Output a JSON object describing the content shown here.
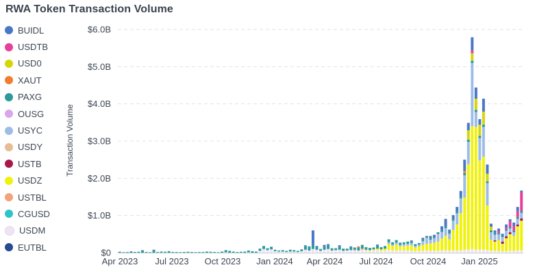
{
  "title": "RWA Token Transaction Volume",
  "chart_data": {
    "type": "bar",
    "stacked": true,
    "title": "RWA Token Transaction Volume",
    "xlabel": "",
    "ylabel": "Transaction Volume",
    "ylim": [
      0,
      6.0
    ],
    "y_unit": "billions USD",
    "grid": "horizontal dashed",
    "legend_placement": "left",
    "y_ticks": [
      "$0",
      "$1.0B",
      "$2.0B",
      "$3.0B",
      "$4.0B",
      "$5.0B",
      "$6.0B"
    ],
    "x_ticks": [
      "Apr 2023",
      "Jul 2023",
      "Oct 2023",
      "Jan 2024",
      "Apr 2024",
      "Jul 2024",
      "Oct 2024",
      "Jan 2025"
    ],
    "series": [
      {
        "name": "BUIDL",
        "color": "#4a78c6"
      },
      {
        "name": "USDTB",
        "color": "#e8409a"
      },
      {
        "name": "USD0",
        "color": "#d4d60a"
      },
      {
        "name": "XAUT",
        "color": "#f07e2e"
      },
      {
        "name": "PAXG",
        "color": "#2c9a9a"
      },
      {
        "name": "OUSG",
        "color": "#d9a5ec"
      },
      {
        "name": "USYC",
        "color": "#9ebde6"
      },
      {
        "name": "USDY",
        "color": "#e8bc95"
      },
      {
        "name": "USTB",
        "color": "#a8174a"
      },
      {
        "name": "USDZ",
        "color": "#f0f20c"
      },
      {
        "name": "USTBL",
        "color": "#f3a27a"
      },
      {
        "name": "CGUSD",
        "color": "#2fc4c8"
      },
      {
        "name": "USDM",
        "color": "#efe4f4"
      },
      {
        "name": "EUTBL",
        "color": "#284a93"
      }
    ],
    "bars": [
      {
        "x": "2023-W14",
        "values": {
          "PAXG": 0.02,
          "BUIDL": 0.005
        }
      },
      {
        "x": "2023-W15",
        "values": {
          "PAXG": 0.015
        }
      },
      {
        "x": "2023-W16",
        "values": {
          "PAXG": 0.018
        }
      },
      {
        "x": "2023-W17",
        "values": {
          "PAXG": 0.03,
          "BUIDL": 0.005
        }
      },
      {
        "x": "2023-W18",
        "values": {
          "PAXG": 0.02
        }
      },
      {
        "x": "2023-W19",
        "values": {
          "PAXG": 0.025
        }
      },
      {
        "x": "2023-W20",
        "values": {
          "PAXG": 0.06,
          "BUIDL": 0.008
        }
      },
      {
        "x": "2023-W21",
        "values": {
          "PAXG": 0.02
        }
      },
      {
        "x": "2023-W22",
        "values": {
          "PAXG": 0.015
        }
      },
      {
        "x": "2023-W23",
        "values": {
          "PAXG": 0.07,
          "BUIDL": 0.01
        }
      },
      {
        "x": "2023-W24",
        "values": {
          "PAXG": 0.02
        }
      },
      {
        "x": "2023-W25",
        "values": {
          "PAXG": 0.03
        }
      },
      {
        "x": "2023-W26",
        "values": {
          "PAXG": 0.025
        }
      },
      {
        "x": "2023-W27",
        "values": {
          "PAXG": 0.04
        }
      },
      {
        "x": "2023-W28",
        "values": {
          "PAXG": 0.02
        }
      },
      {
        "x": "2023-W29",
        "values": {
          "PAXG": 0.018
        }
      },
      {
        "x": "2023-W30",
        "values": {
          "PAXG": 0.015
        }
      },
      {
        "x": "2023-W31",
        "values": {
          "PAXG": 0.02
        }
      },
      {
        "x": "2023-W32",
        "values": {
          "PAXG": 0.025
        }
      },
      {
        "x": "2023-W33",
        "values": {
          "PAXG": 0.02
        }
      },
      {
        "x": "2023-W34",
        "values": {
          "PAXG": 0.015
        }
      },
      {
        "x": "2023-W35",
        "values": {
          "PAXG": 0.018
        }
      },
      {
        "x": "2023-W36",
        "values": {
          "PAXG": 0.02
        }
      },
      {
        "x": "2023-W37",
        "values": {
          "PAXG": 0.03
        }
      },
      {
        "x": "2023-W38",
        "values": {
          "PAXG": 0.025
        }
      },
      {
        "x": "2023-W39",
        "values": {
          "PAXG": 0.02
        }
      },
      {
        "x": "2023-W40",
        "values": {
          "PAXG": 0.015
        }
      },
      {
        "x": "2023-W41",
        "values": {
          "PAXG": 0.03
        }
      },
      {
        "x": "2023-W42",
        "values": {
          "PAXG": 0.06,
          "USDM": 0.01
        }
      },
      {
        "x": "2023-W43",
        "values": {
          "PAXG": 0.05
        }
      },
      {
        "x": "2023-W44",
        "values": {
          "PAXG": 0.03
        }
      },
      {
        "x": "2023-W45",
        "values": {
          "PAXG": 0.02
        }
      },
      {
        "x": "2023-W46",
        "values": {
          "PAXG": 0.025
        }
      },
      {
        "x": "2023-W47",
        "values": {
          "PAXG": 0.03
        }
      },
      {
        "x": "2023-W48",
        "values": {
          "PAXG": 0.05,
          "USDM": 0.01
        }
      },
      {
        "x": "2023-W49",
        "values": {
          "PAXG": 0.04
        }
      },
      {
        "x": "2023-W50",
        "values": {
          "PAXG": 0.03
        }
      },
      {
        "x": "2023-W51",
        "values": {
          "PAXG": 0.06,
          "USDM": 0.05
        }
      },
      {
        "x": "2023-W52",
        "values": {
          "PAXG": 0.08,
          "USDM": 0.1
        }
      },
      {
        "x": "2024-W01",
        "values": {
          "PAXG": 0.05,
          "USDM": 0.07
        }
      },
      {
        "x": "2024-W02",
        "values": {
          "PAXG": 0.07,
          "USDM": 0.09
        }
      },
      {
        "x": "2024-W03",
        "values": {
          "PAXG": 0.04,
          "USDM": 0.04
        }
      },
      {
        "x": "2024-W04",
        "values": {
          "PAXG": 0.03,
          "USDM": 0.03
        }
      },
      {
        "x": "2024-W05",
        "values": {
          "PAXG": 0.04,
          "USDM": 0.03
        }
      },
      {
        "x": "2024-W06",
        "values": {
          "PAXG": 0.03,
          "USDM": 0.02
        }
      },
      {
        "x": "2024-W07",
        "values": {
          "PAXG": 0.05,
          "USDM": 0.03
        }
      },
      {
        "x": "2024-W08",
        "values": {
          "PAXG": 0.04,
          "USDM": 0.03
        }
      },
      {
        "x": "2024-W09",
        "values": {
          "PAXG": 0.03,
          "USDM": 0.02
        }
      },
      {
        "x": "2024-W10",
        "values": {
          "PAXG": 0.05,
          "USDM": 0.04
        }
      },
      {
        "x": "2024-W11",
        "values": {
          "PAXG": 0.1,
          "USDM": 0.08,
          "BUIDL": 0.02
        }
      },
      {
        "x": "2024-W12",
        "values": {
          "PAXG": 0.08,
          "USDM": 0.06,
          "BUIDL": 0.03
        }
      },
      {
        "x": "2024-W13",
        "values": {
          "PAXG": 0.12,
          "USDM": 0.1,
          "BUIDL": 0.38
        }
      },
      {
        "x": "2024-W14",
        "values": {
          "PAXG": 0.06,
          "USDM": 0.08,
          "BUIDL": 0.04
        }
      },
      {
        "x": "2024-W15",
        "values": {
          "PAXG": 0.05,
          "USDM": 0.05
        }
      },
      {
        "x": "2024-W16",
        "values": {
          "PAXG": 0.08,
          "USDM": 0.08,
          "BUIDL": 0.05
        }
      },
      {
        "x": "2024-W17",
        "values": {
          "PAXG": 0.1,
          "USDM": 0.1,
          "BUIDL": 0.03
        }
      },
      {
        "x": "2024-W18",
        "values": {
          "PAXG": 0.06,
          "USDM": 0.06
        }
      },
      {
        "x": "2024-W19",
        "values": {
          "PAXG": 0.05,
          "USDM": 0.07
        }
      },
      {
        "x": "2024-W20",
        "values": {
          "PAXG": 0.08,
          "USDM": 0.08,
          "BUIDL": 0.04
        }
      },
      {
        "x": "2024-W21",
        "values": {
          "PAXG": 0.06,
          "USDM": 0.05
        }
      },
      {
        "x": "2024-W22",
        "values": {
          "PAXG": 0.05,
          "USDM": 0.06
        }
      },
      {
        "x": "2024-W23",
        "values": {
          "PAXG": 0.07,
          "USDM": 0.07,
          "BUIDL": 0.03
        }
      },
      {
        "x": "2024-W24",
        "values": {
          "PAXG": 0.06,
          "USDM": 0.05,
          "USDY": 0.03
        }
      },
      {
        "x": "2024-W25",
        "values": {
          "PAXG": 0.08,
          "USDM": 0.06,
          "XAUT": 0.03
        }
      },
      {
        "x": "2024-W26",
        "values": {
          "PAXG": 0.1,
          "USDM": 0.07,
          "USDY": 0.04
        }
      },
      {
        "x": "2024-W27",
        "values": {
          "PAXG": 0.07,
          "USDM": 0.06,
          "USDZ": 0.02
        }
      },
      {
        "x": "2024-W28",
        "values": {
          "PAXG": 0.06,
          "USDM": 0.05,
          "USDZ": 0.02
        }
      },
      {
        "x": "2024-W29",
        "values": {
          "PAXG": 0.05,
          "USDM": 0.06,
          "USDZ": 0.03
        }
      },
      {
        "x": "2024-W30",
        "values": {
          "PAXG": 0.08,
          "USDM": 0.07,
          "USDZ": 0.04,
          "BUIDL": 0.03
        }
      },
      {
        "x": "2024-W31",
        "values": {
          "PAXG": 0.06,
          "USDM": 0.05,
          "USDZ": 0.04
        }
      },
      {
        "x": "2024-W32",
        "values": {
          "PAXG": 0.07,
          "USDM": 0.06,
          "USDZ": 0.05
        }
      },
      {
        "x": "2024-W33",
        "values": {
          "PAXG": 0.08,
          "USDM": 0.08,
          "USDZ": 0.15,
          "USYC": 0.05
        }
      },
      {
        "x": "2024-W34",
        "values": {
          "PAXG": 0.06,
          "USDM": 0.06,
          "USDZ": 0.12,
          "USYC": 0.04
        }
      },
      {
        "x": "2024-W35",
        "values": {
          "PAXG": 0.07,
          "USDM": 0.06,
          "USDZ": 0.16,
          "USYC": 0.05
        }
      },
      {
        "x": "2024-W36",
        "values": {
          "PAXG": 0.06,
          "USDM": 0.07,
          "USDZ": 0.1,
          "USYC": 0.04
        }
      },
      {
        "x": "2024-W37",
        "values": {
          "PAXG": 0.05,
          "USDM": 0.06,
          "USDZ": 0.12,
          "USYC": 0.05
        }
      },
      {
        "x": "2024-W38",
        "values": {
          "PAXG": 0.06,
          "USDM": 0.06,
          "USDZ": 0.13,
          "USYC": 0.05
        }
      },
      {
        "x": "2024-W39",
        "values": {
          "PAXG": 0.05,
          "USDM": 0.05,
          "USDZ": 0.15,
          "USYC": 0.06,
          "BUIDL": 0.02
        }
      },
      {
        "x": "2024-W40",
        "values": {
          "PAXG": 0.05,
          "USDM": 0.04,
          "USDZ": 0.1,
          "USYC": 0.04
        }
      },
      {
        "x": "2024-W41",
        "values": {
          "PAXG": 0.04,
          "USDM": 0.05,
          "USDZ": 0.12,
          "USYC": 0.05
        }
      },
      {
        "x": "2024-W42",
        "values": {
          "PAXG": 0.05,
          "USDM": 0.05,
          "USDZ": 0.16,
          "USYC": 0.1,
          "BUIDL": 0.04
        }
      },
      {
        "x": "2024-W43",
        "values": {
          "PAXG": 0.05,
          "USDM": 0.06,
          "USDZ": 0.18,
          "USYC": 0.12,
          "OUSG": 0.04
        }
      },
      {
        "x": "2024-W44",
        "values": {
          "PAXG": 0.05,
          "USDM": 0.05,
          "USDZ": 0.2,
          "USYC": 0.1,
          "BUIDL": 0.05
        }
      },
      {
        "x": "2024-W45",
        "values": {
          "PAXG": 0.05,
          "USDM": 0.05,
          "USDZ": 0.22,
          "USYC": 0.12,
          "BUIDL": 0.04
        }
      },
      {
        "x": "2024-W46",
        "values": {
          "PAXG": 0.05,
          "USDM": 0.05,
          "USDZ": 0.25,
          "USYC": 0.15,
          "OUSG": 0.05
        }
      },
      {
        "x": "2024-W47",
        "values": {
          "PAXG": 0.05,
          "USDM": 0.06,
          "USDZ": 0.32,
          "USYC": 0.18,
          "BUIDL": 0.1
        }
      },
      {
        "x": "2024-W48",
        "values": {
          "PAXG": 0.05,
          "USDM": 0.06,
          "USDZ": 0.4,
          "USYC": 0.2,
          "BUIDL": 0.2
        }
      },
      {
        "x": "2024-W49",
        "values": {
          "PAXG": 0.05,
          "USDM": 0.06,
          "USDZ": 0.3,
          "USYC": 0.15,
          "BUIDL": 0.06
        }
      },
      {
        "x": "2024-W50",
        "values": {
          "PAXG": 0.05,
          "USDM": 0.06,
          "USDZ": 0.55,
          "USYC": 0.25,
          "BUIDL": 0.1
        }
      },
      {
        "x": "2024-W51",
        "values": {
          "PAXG": 0.05,
          "USDM": 0.06,
          "USDZ": 0.7,
          "USYC": 0.3,
          "BUIDL": 0.12
        }
      },
      {
        "x": "2024-W52",
        "values": {
          "PAXG": 0.05,
          "USDM": 0.06,
          "USDZ": 1.0,
          "USYC": 0.4,
          "BUIDL": 0.15
        }
      },
      {
        "x": "2025-W01",
        "values": {
          "PAXG": 0.06,
          "USDM": 0.08,
          "USDZ": 1.4,
          "USYC": 0.6,
          "XAUT": 0.06,
          "BUIDL": 0.3
        }
      },
      {
        "x": "2025-W02",
        "values": {
          "PAXG": 0.06,
          "USDM": 0.08,
          "USDZ": 2.3,
          "USYC": 0.6,
          "BUIDL": 0.2,
          "USD0": 0.25
        }
      },
      {
        "x": "2025-W03",
        "values": {
          "PAXG": 0.06,
          "USDM": 0.1,
          "USDZ": 3.3,
          "USYC": 1.7,
          "BUIDL": 0.35,
          "USDTB": 0.08,
          "USD0": 0.2
        }
      },
      {
        "x": "2025-W04",
        "values": {
          "PAXG": 0.06,
          "USDM": 0.08,
          "USDZ": 3.3,
          "USYC": 0.4,
          "BUIDL": 0.3,
          "USD0": 0.3
        }
      },
      {
        "x": "2025-W05",
        "values": {
          "PAXG": 0.06,
          "USDM": 0.08,
          "USDZ": 2.4,
          "USYC": 0.6,
          "BUIDL": 0.15,
          "USD0": 0.3
        }
      },
      {
        "x": "2025-W06",
        "values": {
          "PAXG": 0.06,
          "USDM": 0.08,
          "USDZ": 2.5,
          "USYC": 0.8,
          "BUIDL": 0.35,
          "USD0": 0.35
        }
      },
      {
        "x": "2025-W07",
        "values": {
          "PAXG": 0.05,
          "USDM": 0.07,
          "USDZ": 1.2,
          "USYC": 0.6,
          "BUIDL": 0.25,
          "USD0": 0.2
        }
      },
      {
        "x": "2025-W08",
        "values": {
          "PAXG": 0.05,
          "USDM": 0.05,
          "USDZ": 0.3,
          "USYC": 0.2,
          "BUIDL": 0.08,
          "USD0": 0.1
        }
      },
      {
        "x": "2025-W09",
        "values": {
          "PAXG": 0.04,
          "USDM": 0.05,
          "USDZ": 0.25,
          "USYC": 0.15,
          "BUIDL": 0.08,
          "USTB": 0.03
        }
      },
      {
        "x": "2025-W10",
        "values": {
          "PAXG": 0.04,
          "USDM": 0.04,
          "USDZ": 0.3,
          "USYC": 0.15,
          "BUIDL": 0.06,
          "USDTB": 0.06
        }
      },
      {
        "x": "2025-W11",
        "values": {
          "PAXG": 0.04,
          "USDM": 0.04,
          "USDZ": 0.2,
          "USYC": 0.12,
          "BUIDL": 0.05,
          "USTB": 0.06
        }
      },
      {
        "x": "2025-W12",
        "values": {
          "PAXG": 0.04,
          "USDM": 0.04,
          "USDZ": 0.35,
          "USYC": 0.15,
          "BUIDL": 0.08,
          "USDTB": 0.05,
          "USTB": 0.05
        }
      },
      {
        "x": "2025-W13",
        "values": {
          "PAXG": 0.04,
          "USDM": 0.05,
          "USDZ": 0.45,
          "USYC": 0.1,
          "BUIDL": 0.06,
          "USDTB": 0.15,
          "USTB": 0.05
        }
      },
      {
        "x": "2025-W14",
        "values": {
          "PAXG": 0.04,
          "USDM": 0.05,
          "USDZ": 0.4,
          "USYC": 0.1,
          "BUIDL": 0.1,
          "USDTB": 0.12
        }
      },
      {
        "x": "2025-W15",
        "values": {
          "PAXG": 0.05,
          "USDM": 0.06,
          "USDZ": 0.65,
          "USYC": 0.15,
          "BUIDL": 0.12,
          "USDTB": 0.15,
          "USTB": 0.05
        }
      },
      {
        "x": "2025-W16",
        "values": {
          "PAXG": 0.05,
          "USDM": 0.06,
          "USDZ": 0.8,
          "USYC": 0.15,
          "BUIDL": 0.05,
          "USDTB": 0.5,
          "USTB": 0.06
        }
      }
    ]
  }
}
